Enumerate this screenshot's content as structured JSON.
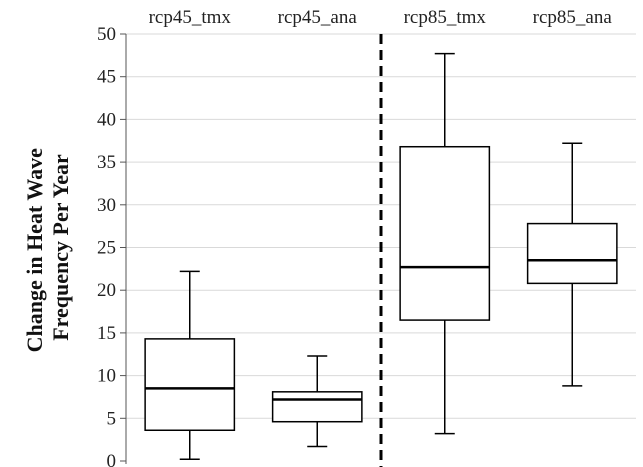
{
  "chart_data": {
    "type": "box",
    "title": "",
    "xlabel": "",
    "ylabel_lines": [
      "Change in Heat Wave",
      "Frequency Per Year"
    ],
    "ylim": [
      0,
      50
    ],
    "yticks": [
      0,
      5,
      10,
      15,
      20,
      25,
      30,
      35,
      40,
      45,
      50
    ],
    "grid": true,
    "categories": [
      "rcp45_tmx",
      "rcp45_ana",
      "rcp85_tmx",
      "rcp85_ana"
    ],
    "category_label_position": "top",
    "divider_after_category": 1,
    "boxes": [
      {
        "name": "rcp45_tmx",
        "min": 0.2,
        "q1": 3.6,
        "median": 8.5,
        "q3": 14.3,
        "max": 22.2
      },
      {
        "name": "rcp45_ana",
        "min": 1.7,
        "q1": 4.6,
        "median": 7.2,
        "q3": 8.1,
        "max": 12.3
      },
      {
        "name": "rcp85_tmx",
        "min": 3.2,
        "q1": 16.5,
        "median": 22.7,
        "q3": 36.8,
        "max": 47.7
      },
      {
        "name": "rcp85_ana",
        "min": 8.8,
        "q1": 20.8,
        "median": 23.5,
        "q3": 27.8,
        "max": 37.2
      }
    ],
    "colors": {
      "box_fill": "#ffffff",
      "stroke": "#000000",
      "grid": "#d9d9d9",
      "divider": "#000000"
    }
  }
}
